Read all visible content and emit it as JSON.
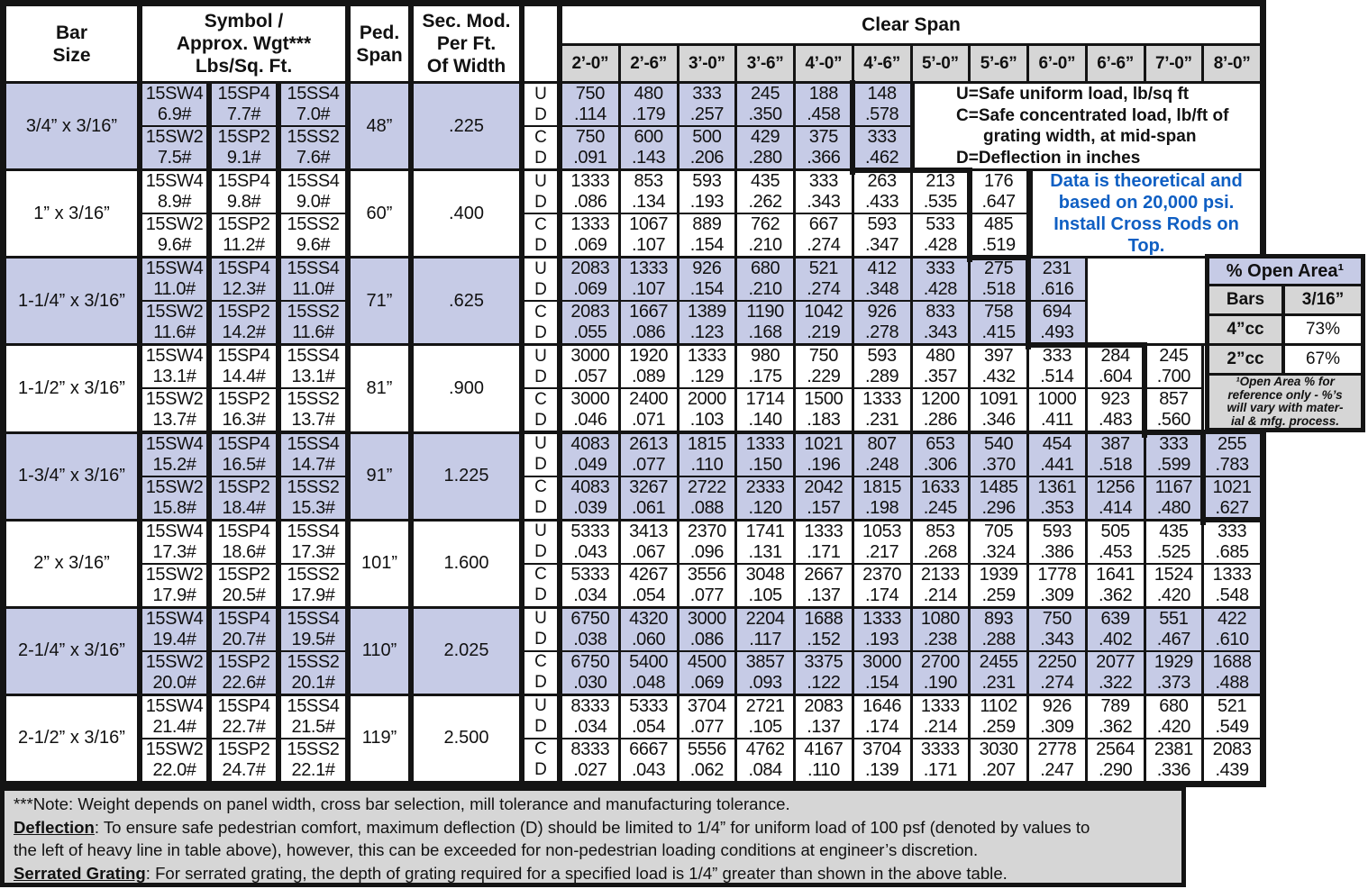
{
  "header": {
    "bar_size": "Bar\nSize",
    "symbol": "Symbol /\nApprox. Wgt***\nLbs/Sq. Ft.",
    "ped_span": "Ped.\nSpan",
    "sec_mod": "Sec. Mod.\nPer Ft.\nOf Width",
    "clear_span": "Clear Span",
    "spans": [
      "2’-0”",
      "2’-6”",
      "3’-0”",
      "3’-6”",
      "4’-0”",
      "4’-6”",
      "5’-0”",
      "5’-6”",
      "6’-0”",
      "6’-6”",
      "7’-0”",
      "8’-0”"
    ]
  },
  "sub_row_labels": [
    "U",
    "D",
    "C",
    "D"
  ],
  "symbol_codes": {
    "top": [
      "15SW4",
      "15SP4",
      "15SS4"
    ],
    "bottom": [
      "15SW2",
      "15SP2",
      "15SS2"
    ]
  },
  "rows": [
    {
      "bar": "3/4” x 3/16”",
      "wt_top": [
        "6.9#",
        "7.7#",
        "7.0#"
      ],
      "wt_bottom": [
        "7.5#",
        "9.1#",
        "7.6#"
      ],
      "ped": "48”",
      "sec_mod": ".225",
      "cols": 6,
      "heavy_after": 4,
      "u": [
        "750",
        "480",
        "333",
        "245",
        "188",
        "148"
      ],
      "d_u": [
        ".114",
        ".179",
        ".257",
        ".350",
        ".458",
        ".578"
      ],
      "c": [
        "750",
        "600",
        "500",
        "429",
        "375",
        "333"
      ],
      "d_c": [
        ".091",
        ".143",
        ".206",
        ".280",
        ".366",
        ".462"
      ]
    },
    {
      "bar": "1” x 3/16”",
      "wt_top": [
        "8.9#",
        "9.8#",
        "9.0#"
      ],
      "wt_bottom": [
        "9.6#",
        "11.2#",
        "9.6#"
      ],
      "ped": "60”",
      "sec_mod": ".400",
      "cols": 8,
      "heavy_after": 6,
      "u": [
        "1333",
        "853",
        "593",
        "435",
        "333",
        "263",
        "213",
        "176"
      ],
      "d_u": [
        ".086",
        ".134",
        ".193",
        ".262",
        ".343",
        ".433",
        ".535",
        ".647"
      ],
      "c": [
        "1333",
        "1067",
        "889",
        "762",
        "667",
        "593",
        "533",
        "485"
      ],
      "d_c": [
        ".069",
        ".107",
        ".154",
        ".210",
        ".274",
        ".347",
        ".428",
        ".519"
      ]
    },
    {
      "bar": "1-1/4” x 3/16”",
      "wt_top": [
        "11.0#",
        "12.3#",
        "11.0#"
      ],
      "wt_bottom": [
        "11.6#",
        "14.2#",
        "11.6#"
      ],
      "ped": "71”",
      "sec_mod": ".625",
      "cols": 9,
      "heavy_after": 7,
      "u": [
        "2083",
        "1333",
        "926",
        "680",
        "521",
        "412",
        "333",
        "275",
        "231"
      ],
      "d_u": [
        ".069",
        ".107",
        ".154",
        ".210",
        ".274",
        ".348",
        ".428",
        ".518",
        ".616"
      ],
      "c": [
        "2083",
        "1667",
        "1389",
        "1190",
        "1042",
        "926",
        "833",
        "758",
        "694"
      ],
      "d_c": [
        ".055",
        ".086",
        ".123",
        ".168",
        ".219",
        ".278",
        ".343",
        ".415",
        ".493"
      ]
    },
    {
      "bar": "1-1/2” x 3/16”",
      "wt_top": [
        "13.1#",
        "14.4#",
        "13.1#"
      ],
      "wt_bottom": [
        "13.7#",
        "16.3#",
        "13.7#"
      ],
      "ped": "81”",
      "sec_mod": ".900",
      "cols": 11,
      "heavy_after": 9,
      "u": [
        "3000",
        "1920",
        "1333",
        "980",
        "750",
        "593",
        "480",
        "397",
        "333",
        "284",
        "245"
      ],
      "d_u": [
        ".057",
        ".089",
        ".129",
        ".175",
        ".229",
        ".289",
        ".357",
        ".432",
        ".514",
        ".604",
        ".700"
      ],
      "c": [
        "3000",
        "2400",
        "2000",
        "1714",
        "1500",
        "1333",
        "1200",
        "1091",
        "1000",
        "923",
        "857"
      ],
      "d_c": [
        ".046",
        ".071",
        ".103",
        ".140",
        ".183",
        ".231",
        ".286",
        ".346",
        ".411",
        ".483",
        ".560"
      ]
    },
    {
      "bar": "1-3/4” x 3/16”",
      "wt_top": [
        "15.2#",
        "16.5#",
        "14.7#"
      ],
      "wt_bottom": [
        "15.8#",
        "18.4#",
        "15.3#"
      ],
      "ped": "91”",
      "sec_mod": "1.225",
      "cols": 12,
      "heavy_after": 10,
      "u": [
        "4083",
        "2613",
        "1815",
        "1333",
        "1021",
        "807",
        "653",
        "540",
        "454",
        "387",
        "333",
        "255"
      ],
      "d_u": [
        ".049",
        ".077",
        ".110",
        ".150",
        ".196",
        ".248",
        ".306",
        ".370",
        ".441",
        ".518",
        ".599",
        ".783"
      ],
      "c": [
        "4083",
        "3267",
        "2722",
        "2333",
        "2042",
        "1815",
        "1633",
        "1485",
        "1361",
        "1256",
        "1167",
        "1021"
      ],
      "d_c": [
        ".039",
        ".061",
        ".088",
        ".120",
        ".157",
        ".198",
        ".245",
        ".296",
        ".353",
        ".414",
        ".480",
        ".627"
      ]
    },
    {
      "bar": "2” x 3/16”",
      "wt_top": [
        "17.3#",
        "18.6#",
        "17.3#"
      ],
      "wt_bottom": [
        "17.9#",
        "20.5#",
        "17.9#"
      ],
      "ped": "101”",
      "sec_mod": "1.600",
      "cols": 12,
      "heavy_after": 11,
      "u": [
        "5333",
        "3413",
        "2370",
        "1741",
        "1333",
        "1053",
        "853",
        "705",
        "593",
        "505",
        "435",
        "333"
      ],
      "d_u": [
        ".043",
        ".067",
        ".096",
        ".131",
        ".171",
        ".217",
        ".268",
        ".324",
        ".386",
        ".453",
        ".525",
        ".685"
      ],
      "c": [
        "5333",
        "4267",
        "3556",
        "3048",
        "2667",
        "2370",
        "2133",
        "1939",
        "1778",
        "1641",
        "1524",
        "1333"
      ],
      "d_c": [
        ".034",
        ".054",
        ".077",
        ".105",
        ".137",
        ".174",
        ".214",
        ".259",
        ".309",
        ".362",
        ".420",
        ".548"
      ]
    },
    {
      "bar": "2-1/4” x 3/16”",
      "wt_top": [
        "19.4#",
        "20.7#",
        "19.5#"
      ],
      "wt_bottom": [
        "20.0#",
        "22.6#",
        "20.1#"
      ],
      "ped": "110”",
      "sec_mod": "2.025",
      "cols": 12,
      "heavy_after": null,
      "u": [
        "6750",
        "4320",
        "3000",
        "2204",
        "1688",
        "1333",
        "1080",
        "893",
        "750",
        "639",
        "551",
        "422"
      ],
      "d_u": [
        ".038",
        ".060",
        ".086",
        ".117",
        ".152",
        ".193",
        ".238",
        ".288",
        ".343",
        ".402",
        ".467",
        ".610"
      ],
      "c": [
        "6750",
        "5400",
        "4500",
        "3857",
        "3375",
        "3000",
        "2700",
        "2455",
        "2250",
        "2077",
        "1929",
        "1688"
      ],
      "d_c": [
        ".030",
        ".048",
        ".069",
        ".093",
        ".122",
        ".154",
        ".190",
        ".231",
        ".274",
        ".322",
        ".373",
        ".488"
      ]
    },
    {
      "bar": "2-1/2” x 3/16”",
      "wt_top": [
        "21.4#",
        "22.7#",
        "21.5#"
      ],
      "wt_bottom": [
        "22.0#",
        "24.7#",
        "22.1#"
      ],
      "ped": "119”",
      "sec_mod": "2.500",
      "cols": 12,
      "heavy_after": null,
      "u": [
        "8333",
        "5333",
        "3704",
        "2721",
        "2083",
        "1646",
        "1333",
        "1102",
        "926",
        "789",
        "680",
        "521"
      ],
      "d_u": [
        ".034",
        ".054",
        ".077",
        ".105",
        ".137",
        ".174",
        ".214",
        ".259",
        ".309",
        ".362",
        ".420",
        ".549"
      ],
      "c": [
        "8333",
        "6667",
        "5556",
        "4762",
        "4167",
        "3704",
        "3333",
        "3030",
        "2778",
        "2564",
        "2381",
        "2083"
      ],
      "d_c": [
        ".027",
        ".043",
        ".062",
        ".084",
        ".110",
        ".139",
        ".171",
        ".207",
        ".247",
        ".290",
        ".336",
        ".439"
      ]
    }
  ],
  "legend": {
    "lines": [
      "U=Safe uniform load, lb/sq ft",
      "C=Safe concentrated load, lb/ft of",
      "grating width, at mid-span",
      "D=Deflection in inches"
    ]
  },
  "blue_note": "Data is theoretical and\nbased on 20,000 psi.\nInstall Cross Rods on\nTop.",
  "open_area": {
    "title": "% Open Area¹",
    "cols": [
      "Bars",
      "3/16”"
    ],
    "rows": [
      [
        "4”cc",
        "73%"
      ],
      [
        "2”cc",
        "67%"
      ]
    ],
    "footnote": "¹Open Area % for\nreference only - %’s\nwill vary with mater-\nial & mfg. process."
  },
  "footnotes": [
    [
      {
        "t": "***Note: Weight depends on panel width, cross bar selection, mill tolerance and manufacturing tolerance."
      }
    ],
    [
      {
        "t": "Deflection",
        "s": "bu"
      },
      {
        "t": ":  To ensure safe pedestrian comfort, maximum deflection (D) should be limited to 1/4” for uniform load of 100 psf (denoted by values to"
      }
    ],
    [
      {
        "t": "the left of heavy line in table above), however, this can be exceeded for non-pedestrian loading conditions at engineer’s discretion."
      }
    ],
    [
      {
        "t": "Serrated Grating",
        "s": "bu"
      },
      {
        "t": ":  For serrated grating, the depth of grating required for a specified load is 1/4” greater than shown in the above table."
      }
    ]
  ],
  "colors": {
    "lavender": "#c6cbe6",
    "gray": "#d6d6d6",
    "blue": "#0f5fc3",
    "line": "#141414"
  }
}
